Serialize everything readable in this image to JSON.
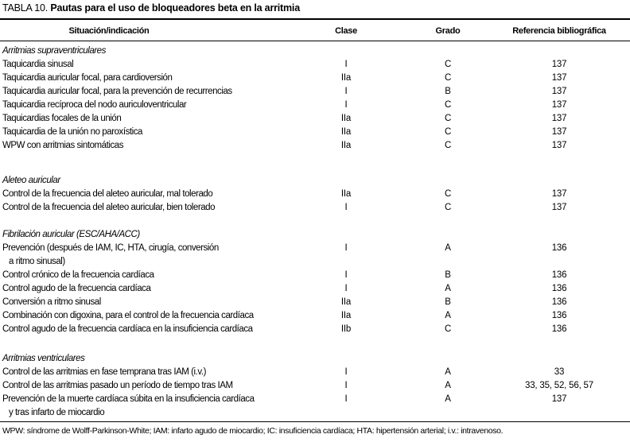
{
  "title": {
    "label": "TABLA 10.",
    "text": "Pautas para el uso de bloqueadores beta en la arritmia"
  },
  "columns": {
    "situacion": "Situación/indicación",
    "clase": "Clase",
    "grado": "Grado",
    "referencia": "Referencia bibliográfica"
  },
  "sections": [
    {
      "name": "Arritmias supraventriculares",
      "rows": [
        {
          "situation": "Taquicardia sinusal",
          "clase": "I",
          "grado": "C",
          "ref": "137"
        },
        {
          "situation": "Taquicardia auricular focal, para cardioversión",
          "clase": "IIa",
          "grado": "C",
          "ref": "137"
        },
        {
          "situation": "Taquicardia auricular focal, para la prevención de recurrencias",
          "clase": "I",
          "grado": "B",
          "ref": "137"
        },
        {
          "situation": "Taquicardia recíproca del nodo auriculoventricular",
          "clase": "I",
          "grado": "C",
          "ref": "137"
        },
        {
          "situation": "Taquicardias focales de la unión",
          "clase": "IIa",
          "grado": "C",
          "ref": "137"
        },
        {
          "situation": "Taquicardia de la unión no paroxística",
          "clase": "IIa",
          "grado": "C",
          "ref": "137"
        },
        {
          "situation": "WPW con arritmias sintomáticas",
          "clase": "IIa",
          "grado": "C",
          "ref": "137"
        }
      ]
    },
    {
      "name": "Aleteo auricular",
      "rows": [
        {
          "situation": "Control de la frecuencia del aleteo auricular, mal tolerado",
          "clase": "IIa",
          "grado": "C",
          "ref": "137"
        },
        {
          "situation": "Control de la frecuencia del aleteo auricular, bien tolerado",
          "clase": "I",
          "grado": "C",
          "ref": "137"
        }
      ]
    },
    {
      "name": "Fibrilación auricular (ESC/AHA/ACC)",
      "rows": [
        {
          "situation": "Prevención (después de IAM, IC, HTA, cirugía, conversión",
          "situation2": "a ritmo sinusal)",
          "clase": "I",
          "grado": "A",
          "ref": "136"
        },
        {
          "situation": "Control crónico de la frecuencia cardíaca",
          "clase": "I",
          "grado": "B",
          "ref": "136"
        },
        {
          "situation": "Control agudo de la frecuencia cardíaca",
          "clase": "I",
          "grado": "A",
          "ref": "136"
        },
        {
          "situation": "Conversión a ritmo sinusal",
          "clase": "IIa",
          "grado": "B",
          "ref": "136"
        },
        {
          "situation": "Combinación con digoxina, para el control de la frecuencia cardíaca",
          "clase": "IIa",
          "grado": "A",
          "ref": "136"
        },
        {
          "situation": "Control agudo de la frecuencia cardíaca en la insuficiencia cardíaca",
          "clase": "IIb",
          "grado": "C",
          "ref": "136"
        }
      ]
    },
    {
      "name": "Arritmias ventriculares",
      "rows": [
        {
          "situation": "Control de las arritmias en fase temprana tras IAM (i.v.)",
          "clase": "I",
          "grado": "A",
          "ref": "33"
        },
        {
          "situation": "Control de las arritmias pasado un período de tiempo tras IAM",
          "clase": "I",
          "grado": "A",
          "ref": "33, 35, 52, 56, 57"
        },
        {
          "situation": "Prevención de la muerte cardíaca súbita en la insuficiencia cardíaca",
          "situation2": "y tras infarto de miocardio",
          "clase": "I",
          "grado": "A",
          "ref": "137"
        }
      ]
    }
  ],
  "footnote": "WPW: síndrome de Wolff-Parkinson-White; IAM: infarto agudo de miocardio; IC: insuficiencia cardíaca; HTA: hipertensión arterial; i.v.: intravenoso."
}
